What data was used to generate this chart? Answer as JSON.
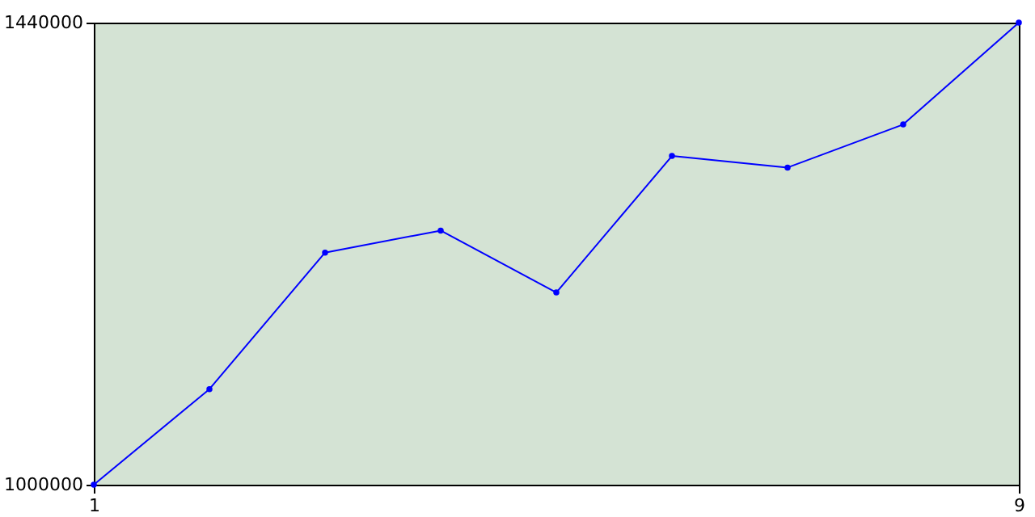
{
  "chart_data": {
    "type": "line",
    "x": [
      1,
      2,
      3,
      4,
      5,
      6,
      7,
      8,
      9
    ],
    "series": [
      {
        "color": "#0000ff",
        "values": [
          1000000,
          1091000,
          1221000,
          1242000,
          1183000,
          1313000,
          1302000,
          1343000,
          1440000
        ]
      }
    ],
    "xlim": [
      1,
      9
    ],
    "xticks": [
      1,
      9
    ],
    "ylim": [
      1000000,
      1440000
    ],
    "yticks": [
      1000000,
      1440000
    ],
    "marker": "circle",
    "line_style": "solid"
  }
}
